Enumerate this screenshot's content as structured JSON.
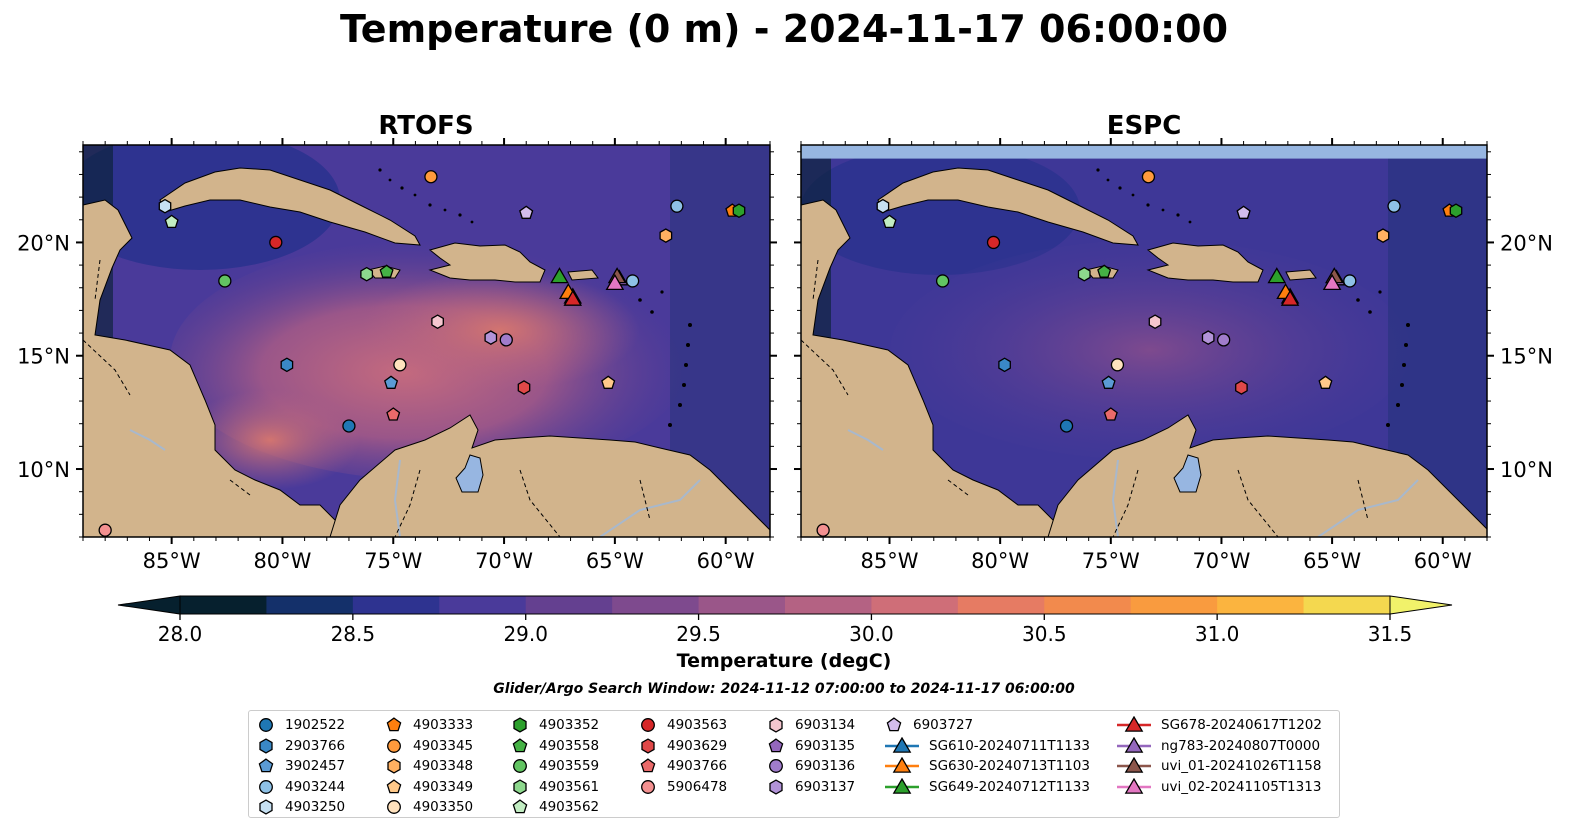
{
  "figure": {
    "suptitle": "Temperature (0 m) - 2024-11-17 06:00:00",
    "search_window": "Glider/Argo Search Window: 2024-11-12 07:00:00 to 2024-11-17 06:00:00"
  },
  "colors": {
    "land": "#D2B48C",
    "lake": "#97B6E1",
    "river": "#A8B8CC",
    "no_data_band": "#97B6E1",
    "colormap": [
      "#06202E",
      "#14306A",
      "#2E3390",
      "#4A3A9A",
      "#644090",
      "#7E4A8E",
      "#9A5689",
      "#B46283",
      "#CF6E78",
      "#E67B63",
      "#F28A4D",
      "#F99B3F",
      "#FBB43F",
      "#F4D84F",
      "#F1F26A"
    ]
  },
  "chart_data": [
    {
      "type": "heatmap",
      "title": "RTOFS",
      "variable": "Temperature (degC)",
      "xlim": [
        -89,
        -58
      ],
      "ylim": [
        7,
        24.3
      ],
      "xticks": [
        "85°W",
        "80°W",
        "75°W",
        "70°W",
        "65°W",
        "60°W"
      ],
      "xtick_values": [
        -85,
        -80,
        -75,
        -70,
        -65,
        -60
      ],
      "yticks": [
        "20°N",
        "15°N",
        "10°N"
      ],
      "ytick_values": [
        20,
        15,
        10
      ],
      "ytick_side": "left"
    },
    {
      "type": "heatmap",
      "title": "ESPC",
      "variable": "Temperature (degC)",
      "xlim": [
        -89,
        -58
      ],
      "ylim": [
        7,
        24.3
      ],
      "xticks": [
        "85°W",
        "80°W",
        "75°W",
        "70°W",
        "65°W",
        "60°W"
      ],
      "xtick_values": [
        -85,
        -80,
        -75,
        -70,
        -65,
        -60
      ],
      "yticks": [
        "20°N",
        "15°N",
        "10°N"
      ],
      "ytick_values": [
        20,
        15,
        10
      ],
      "ytick_side": "right",
      "data_north_limit": 23.7
    }
  ],
  "colorbar": {
    "label": "Temperature (degC)",
    "min": 28.0,
    "max": 31.5,
    "ticks": [
      "28.0",
      "28.5",
      "29.0",
      "29.5",
      "30.0",
      "30.5",
      "31.0",
      "31.5"
    ],
    "tick_values": [
      28.0,
      28.5,
      29.0,
      29.5,
      30.0,
      30.5,
      31.0,
      31.5
    ],
    "extend": "both"
  },
  "legend": {
    "columns": [
      [
        {
          "label": "1902522",
          "marker": "circle",
          "color": "#1F77B4"
        },
        {
          "label": "2903766",
          "marker": "hexagon",
          "color": "#3A88C6"
        },
        {
          "label": "3902457",
          "marker": "pentagon",
          "color": "#5B9BD5"
        },
        {
          "label": "4903244",
          "marker": "circle",
          "color": "#8EC1E6"
        },
        {
          "label": "4903250",
          "marker": "hexagon",
          "color": "#C6E0F2"
        }
      ],
      [
        {
          "label": "4903333",
          "marker": "pentagon",
          "color": "#FF7F0E"
        },
        {
          "label": "4903345",
          "marker": "circle",
          "color": "#FF9A3C"
        },
        {
          "label": "4903348",
          "marker": "hexagon",
          "color": "#FFB061"
        },
        {
          "label": "4903349",
          "marker": "pentagon",
          "color": "#FFC98A"
        },
        {
          "label": "4903350",
          "marker": "circle",
          "color": "#FFE2BE"
        }
      ],
      [
        {
          "label": "4903352",
          "marker": "hexagon",
          "color": "#2CA02C"
        },
        {
          "label": "4903558",
          "marker": "pentagon",
          "color": "#45B245"
        },
        {
          "label": "4903559",
          "marker": "circle",
          "color": "#62C462"
        },
        {
          "label": "4903561",
          "marker": "hexagon",
          "color": "#8DD88D"
        },
        {
          "label": "4903562",
          "marker": "pentagon",
          "color": "#C2EDC2"
        }
      ],
      [
        {
          "label": "4903563",
          "marker": "circle",
          "color": "#D62728"
        },
        {
          "label": "4903629",
          "marker": "hexagon",
          "color": "#E04848"
        },
        {
          "label": "4903766",
          "marker": "pentagon",
          "color": "#EA6A6A"
        },
        {
          "label": "5906478",
          "marker": "circle",
          "color": "#F39090"
        }
      ],
      [
        {
          "label": "6903134",
          "marker": "hexagon",
          "color": "#F5C6CF"
        },
        {
          "label": "6903135",
          "marker": "pentagon",
          "color": "#9467BD"
        },
        {
          "label": "6903136",
          "marker": "circle",
          "color": "#A07CCB"
        },
        {
          "label": "6903137",
          "marker": "hexagon",
          "color": "#B293D8"
        }
      ],
      [
        {
          "label": "6903727",
          "marker": "pentagon",
          "color": "#D2BCEC"
        },
        {
          "label": "SG610-20240711T1133",
          "marker": "triangle",
          "color": "#1F77B4",
          "line": true
        },
        {
          "label": "SG630-20240713T1103",
          "marker": "triangle",
          "color": "#FF7F0E",
          "line": true
        },
        {
          "label": "SG649-20240712T1133",
          "marker": "triangle",
          "color": "#2CA02C",
          "line": true
        }
      ],
      [
        {
          "label": "SG678-20240617T1202",
          "marker": "triangle",
          "color": "#D62728",
          "line": true
        },
        {
          "label": "ng783-20240807T0000",
          "marker": "triangle",
          "color": "#9467BD",
          "line": true
        },
        {
          "label": "uvi_01-20241026T1158",
          "marker": "triangle",
          "color": "#8C564B",
          "line": true
        },
        {
          "label": "uvi_02-20241105T1313",
          "marker": "triangle",
          "color": "#E377C2",
          "line": true
        }
      ]
    ]
  },
  "observations": [
    {
      "id": "1902522",
      "lon": -77.0,
      "lat": 11.9
    },
    {
      "id": "2903766",
      "lon": -79.8,
      "lat": 14.6
    },
    {
      "id": "3902457",
      "lon": -75.1,
      "lat": 13.8
    },
    {
      "id": "4903244",
      "lon": -62.2,
      "lat": 21.6
    },
    {
      "id": "4903250",
      "lon": -85.3,
      "lat": 21.6
    },
    {
      "id": "4903333",
      "lon": -59.7,
      "lat": 21.4
    },
    {
      "id": "4903345",
      "lon": -73.3,
      "lat": 22.9
    },
    {
      "id": "4903348",
      "lon": -62.7,
      "lat": 20.3
    },
    {
      "id": "4903349",
      "lon": -65.3,
      "lat": 13.8
    },
    {
      "id": "4903350",
      "lon": -74.7,
      "lat": 14.6
    },
    {
      "id": "4903352",
      "lon": -59.4,
      "lat": 21.4
    },
    {
      "id": "4903558",
      "lon": -75.3,
      "lat": 18.7
    },
    {
      "id": "4903559",
      "lon": -82.6,
      "lat": 18.3
    },
    {
      "id": "4903561",
      "lon": -76.2,
      "lat": 18.6
    },
    {
      "id": "4903562",
      "lon": -85.0,
      "lat": 20.9
    },
    {
      "id": "4903563",
      "lon": -80.3,
      "lat": 20.0
    },
    {
      "id": "4903629",
      "lon": -69.1,
      "lat": 13.6
    },
    {
      "id": "4903766",
      "lon": -75.0,
      "lat": 12.4
    },
    {
      "id": "5906478",
      "lon": -88.0,
      "lat": 7.3
    },
    {
      "id": "6903134",
      "lon": -73.0,
      "lat": 16.5
    },
    {
      "id": "6903135",
      "lon": -69.0,
      "lat": 21.3
    },
    {
      "id": "6903136",
      "lon": -69.9,
      "lat": 15.7
    },
    {
      "id": "6903137",
      "lon": -70.6,
      "lat": 15.8
    },
    {
      "id": "6903727",
      "lon": -69.0,
      "lat": 21.3
    },
    {
      "id": "SG610-20240711T1133",
      "lon": -66.9,
      "lat": 17.6
    },
    {
      "id": "SG630-20240713T1103",
      "lon": -67.1,
      "lat": 17.8
    },
    {
      "id": "SG649-20240712T1133",
      "lon": -67.5,
      "lat": 18.5
    },
    {
      "id": "SG678-20240617T1202",
      "lon": -66.9,
      "lat": 17.5
    },
    {
      "id": "ng783-20240807T0000",
      "lon": -64.8,
      "lat": 18.4
    },
    {
      "id": "uvi_01-20241026T1158",
      "lon": -64.9,
      "lat": 18.5
    },
    {
      "id": "uvi_02-20241105T1313",
      "lon": -65.0,
      "lat": 18.2
    },
    {
      "id": "4903244b",
      "lon": -64.2,
      "lat": 18.3
    }
  ]
}
